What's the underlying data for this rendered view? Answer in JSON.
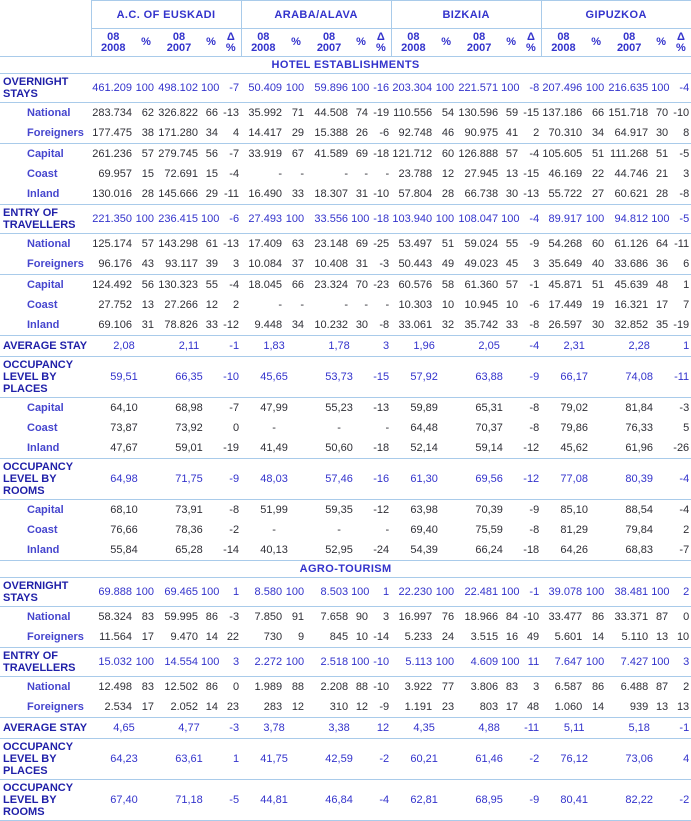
{
  "colors": {
    "accent_blue": "#3333cc",
    "section_label_navy": "#1f1fa8",
    "sub_label_blue": "#4646ce",
    "value_black": "#2f2f36",
    "grid_line_blue": "#a9cbea"
  },
  "header": {
    "groups": [
      "A.C. OF EUSKADI",
      "ARABA/ALAVA",
      "BIZKAIA",
      "GIPUZKOA"
    ],
    "subcols": [
      "08\n2008",
      "%",
      "08\n2007",
      "%",
      "Δ %"
    ]
  },
  "sections": [
    {
      "title": "HOTEL ESTABLISHMENTS",
      "rows": [
        {
          "label": "OVERNIGHT STAYS",
          "style": "section",
          "sep": true,
          "cells": [
            "461.209",
            "100",
            "498.102",
            "100",
            "-7",
            "50.409",
            "100",
            "59.896",
            "100",
            "-16",
            "203.304",
            "100",
            "221.571",
            "100",
            "-8",
            "207.496",
            "100",
            "216.635",
            "100",
            "-4"
          ]
        },
        {
          "label": "National",
          "style": "sub",
          "cells": [
            "283.734",
            "62",
            "326.822",
            "66",
            "-13",
            "35.992",
            "71",
            "44.508",
            "74",
            "-19",
            "110.556",
            "54",
            "130.596",
            "59",
            "-15",
            "137.186",
            "66",
            "151.718",
            "70",
            "-10"
          ]
        },
        {
          "label": "Foreigners",
          "style": "sub",
          "sep": true,
          "cells": [
            "177.475",
            "38",
            "171.280",
            "34",
            "4",
            "14.417",
            "29",
            "15.388",
            "26",
            "-6",
            "92.748",
            "46",
            "90.975",
            "41",
            "2",
            "70.310",
            "34",
            "64.917",
            "30",
            "8"
          ]
        },
        {
          "label": "Capital",
          "style": "sub",
          "cells": [
            "261.236",
            "57",
            "279.745",
            "56",
            "-7",
            "33.919",
            "67",
            "41.589",
            "69",
            "-18",
            "121.712",
            "60",
            "126.888",
            "57",
            "-4",
            "105.605",
            "51",
            "111.268",
            "51",
            "-5"
          ]
        },
        {
          "label": "Coast",
          "style": "sub",
          "cells": [
            "69.957",
            "15",
            "72.691",
            "15",
            "-4",
            "-",
            "-",
            "-",
            "-",
            "-",
            "23.788",
            "12",
            "27.945",
            "13",
            "-15",
            "46.169",
            "22",
            "44.746",
            "21",
            "3"
          ]
        },
        {
          "label": "Inland",
          "style": "sub",
          "sep": true,
          "cells": [
            "130.016",
            "28",
            "145.666",
            "29",
            "-11",
            "16.490",
            "33",
            "18.307",
            "31",
            "-10",
            "57.804",
            "28",
            "66.738",
            "30",
            "-13",
            "55.722",
            "27",
            "60.621",
            "28",
            "-8"
          ]
        },
        {
          "label": "ENTRY OF TRAVELLERS",
          "style": "section",
          "sep": true,
          "cells": [
            "221.350",
            "100",
            "236.415",
            "100",
            "-6",
            "27.493",
            "100",
            "33.556",
            "100",
            "-18",
            "103.940",
            "100",
            "108.047",
            "100",
            "-4",
            "89.917",
            "100",
            "94.812",
            "100",
            "-5"
          ]
        },
        {
          "label": "National",
          "style": "sub",
          "cells": [
            "125.174",
            "57",
            "143.298",
            "61",
            "-13",
            "17.409",
            "63",
            "23.148",
            "69",
            "-25",
            "53.497",
            "51",
            "59.024",
            "55",
            "-9",
            "54.268",
            "60",
            "61.126",
            "64",
            "-11"
          ]
        },
        {
          "label": "Foreigners",
          "style": "sub",
          "sep": true,
          "cells": [
            "96.176",
            "43",
            "93.117",
            "39",
            "3",
            "10.084",
            "37",
            "10.408",
            "31",
            "-3",
            "50.443",
            "49",
            "49.023",
            "45",
            "3",
            "35.649",
            "40",
            "33.686",
            "36",
            "6"
          ]
        },
        {
          "label": "Capital",
          "style": "sub",
          "cells": [
            "124.492",
            "56",
            "130.323",
            "55",
            "-4",
            "18.045",
            "66",
            "23.324",
            "70",
            "-23",
            "60.576",
            "58",
            "61.360",
            "57",
            "-1",
            "45.871",
            "51",
            "45.639",
            "48",
            "1"
          ]
        },
        {
          "label": "Coast",
          "style": "sub",
          "cells": [
            "27.752",
            "13",
            "27.266",
            "12",
            "2",
            "-",
            "-",
            "-",
            "-",
            "-",
            "10.303",
            "10",
            "10.945",
            "10",
            "-6",
            "17.449",
            "19",
            "16.321",
            "17",
            "7"
          ]
        },
        {
          "label": "Inland",
          "style": "sub",
          "sep": true,
          "cells": [
            "69.106",
            "31",
            "78.826",
            "33",
            "-12",
            "9.448",
            "34",
            "10.232",
            "30",
            "-8",
            "33.061",
            "32",
            "35.742",
            "33",
            "-8",
            "26.597",
            "30",
            "32.852",
            "35",
            "-19"
          ]
        },
        {
          "label": "AVERAGE STAY",
          "style": "section",
          "merged": true,
          "sep": true,
          "cells": [
            "2,08",
            "2,11",
            "-1",
            "1,83",
            "1,78",
            "3",
            "1,96",
            "2,05",
            "-4",
            "2,31",
            "2,28",
            "1"
          ]
        },
        {
          "label": "OCCUPANCY LEVEL BY PLACES",
          "style": "section",
          "merged": true,
          "sep": true,
          "cells": [
            "59,51",
            "66,35",
            "-10",
            "45,65",
            "53,73",
            "-15",
            "57,92",
            "63,88",
            "-9",
            "66,17",
            "74,08",
            "-11"
          ]
        },
        {
          "label": "Capital",
          "style": "sub",
          "merged": true,
          "cells": [
            "64,10",
            "68,98",
            "-7",
            "47,99",
            "55,23",
            "-13",
            "59,89",
            "65,31",
            "-8",
            "79,02",
            "81,84",
            "-3"
          ]
        },
        {
          "label": "Coast",
          "style": "sub",
          "merged": true,
          "cells": [
            "73,87",
            "73,92",
            "0",
            "-",
            "-",
            "-",
            "64,48",
            "70,37",
            "-8",
            "79,86",
            "76,33",
            "5"
          ]
        },
        {
          "label": "Inland",
          "style": "sub",
          "merged": true,
          "sep": true,
          "cells": [
            "47,67",
            "59,01",
            "-19",
            "41,49",
            "50,60",
            "-18",
            "52,14",
            "59,14",
            "-12",
            "45,62",
            "61,96",
            "-26"
          ]
        },
        {
          "label": "OCCUPANCY LEVEL BY ROOMS",
          "style": "section",
          "merged": true,
          "sep": true,
          "cells": [
            "64,98",
            "71,75",
            "-9",
            "48,03",
            "57,46",
            "-16",
            "61,30",
            "69,56",
            "-12",
            "77,08",
            "80,39",
            "-4"
          ]
        },
        {
          "label": "Capital",
          "style": "sub",
          "merged": true,
          "cells": [
            "68,10",
            "73,91",
            "-8",
            "51,99",
            "59,35",
            "-12",
            "63,98",
            "70,39",
            "-9",
            "85,10",
            "88,54",
            "-4"
          ]
        },
        {
          "label": "Coast",
          "style": "sub",
          "merged": true,
          "cells": [
            "76,66",
            "78,36",
            "-2",
            "-",
            "-",
            "-",
            "69,40",
            "75,59",
            "-8",
            "81,29",
            "79,84",
            "2"
          ]
        },
        {
          "label": "Inland",
          "style": "sub",
          "merged": true,
          "sep": true,
          "cells": [
            "55,84",
            "65,28",
            "-14",
            "40,13",
            "52,95",
            "-24",
            "54,39",
            "66,24",
            "-18",
            "64,26",
            "68,83",
            "-7"
          ]
        }
      ]
    },
    {
      "title": "AGRO-TOURISM",
      "rows": [
        {
          "label": "OVERNIGHT STAYS",
          "style": "section",
          "sep": true,
          "cells": [
            "69.888",
            "100",
            "69.465",
            "100",
            "1",
            "8.580",
            "100",
            "8.503",
            "100",
            "1",
            "22.230",
            "100",
            "22.481",
            "100",
            "-1",
            "39.078",
            "100",
            "38.481",
            "100",
            "2"
          ]
        },
        {
          "label": "National",
          "style": "sub",
          "cells": [
            "58.324",
            "83",
            "59.995",
            "86",
            "-3",
            "7.850",
            "91",
            "7.658",
            "90",
            "3",
            "16.997",
            "76",
            "18.966",
            "84",
            "-10",
            "33.477",
            "86",
            "33.371",
            "87",
            "0"
          ]
        },
        {
          "label": "Foreigners",
          "style": "sub",
          "sep": true,
          "cells": [
            "11.564",
            "17",
            "9.470",
            "14",
            "22",
            "730",
            "9",
            "845",
            "10",
            "-14",
            "5.233",
            "24",
            "3.515",
            "16",
            "49",
            "5.601",
            "14",
            "5.110",
            "13",
            "10"
          ]
        },
        {
          "label": "ENTRY OF TRAVELLERS",
          "style": "section",
          "sep": true,
          "cells": [
            "15.032",
            "100",
            "14.554",
            "100",
            "3",
            "2.272",
            "100",
            "2.518",
            "100",
            "-10",
            "5.113",
            "100",
            "4.609",
            "100",
            "11",
            "7.647",
            "100",
            "7.427",
            "100",
            "3"
          ]
        },
        {
          "label": "National",
          "style": "sub",
          "cells": [
            "12.498",
            "83",
            "12.502",
            "86",
            "0",
            "1.989",
            "88",
            "2.208",
            "88",
            "-10",
            "3.922",
            "77",
            "3.806",
            "83",
            "3",
            "6.587",
            "86",
            "6.488",
            "87",
            "2"
          ]
        },
        {
          "label": "Foreigners",
          "style": "sub",
          "sep": true,
          "cells": [
            "2.534",
            "17",
            "2.052",
            "14",
            "23",
            "283",
            "12",
            "310",
            "12",
            "-9",
            "1.191",
            "23",
            "803",
            "17",
            "48",
            "1.060",
            "14",
            "939",
            "13",
            "13"
          ]
        },
        {
          "label": "AVERAGE STAY",
          "style": "section",
          "merged": true,
          "sep": true,
          "cells": [
            "4,65",
            "4,77",
            "-3",
            "3,78",
            "3,38",
            "12",
            "4,35",
            "4,88",
            "-11",
            "5,11",
            "5,18",
            "-1"
          ]
        },
        {
          "label": "OCCUPANCY LEVEL BY PLACES",
          "style": "section",
          "merged": true,
          "sep": true,
          "cells": [
            "64,23",
            "63,61",
            "1",
            "41,75",
            "42,59",
            "-2",
            "60,21",
            "61,46",
            "-2",
            "76,12",
            "73,06",
            "4"
          ]
        },
        {
          "label": "OCCUPANCY LEVEL BY ROOMS",
          "style": "section",
          "merged": true,
          "sep": true,
          "cells": [
            "67,40",
            "71,18",
            "-5",
            "44,81",
            "46,84",
            "-4",
            "62,81",
            "68,95",
            "-9",
            "80,41",
            "82,22",
            "-2"
          ]
        }
      ]
    }
  ]
}
